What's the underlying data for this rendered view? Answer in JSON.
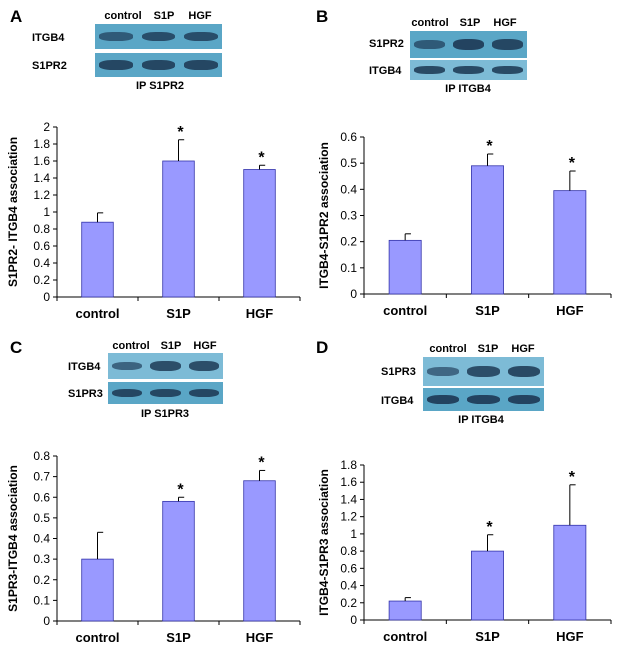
{
  "colors": {
    "bar": "#9999ff",
    "bar_stroke": "#3333aa",
    "blot": "#5aa6c6",
    "band": "#1e3b57"
  },
  "panels": [
    {
      "letter": "A",
      "lanes": [
        "control",
        "S1P",
        "HGF"
      ],
      "blots": [
        "ITGB4",
        "S1PR2"
      ],
      "ip": "IP S1PR2",
      "band_intensity": [
        [
          0.6,
          0.8,
          0.8
        ],
        [
          0.9,
          0.9,
          0.9
        ]
      ]
    },
    {
      "letter": "B",
      "lanes": [
        "control",
        "S1P",
        "HGF"
      ],
      "blots": [
        "S1PR2",
        "ITGB4"
      ],
      "ip": "IP ITGB4",
      "band_intensity": [
        [
          0.6,
          0.95,
          0.9
        ],
        [
          0.9,
          0.9,
          0.9
        ]
      ]
    },
    {
      "letter": "C",
      "lanes": [
        "control",
        "S1P",
        "HGF"
      ],
      "blots": [
        "ITGB4",
        "S1PR3"
      ],
      "ip": "IP S1PR3",
      "band_intensity": [
        [
          0.55,
          0.85,
          0.85
        ],
        [
          0.9,
          0.9,
          0.9
        ]
      ]
    },
    {
      "letter": "D",
      "lanes": [
        "control",
        "S1P",
        "HGF"
      ],
      "blots": [
        "S1PR3",
        "ITGB4"
      ],
      "ip": "IP ITGB4",
      "band_intensity": [
        [
          0.5,
          0.85,
          0.9
        ],
        [
          0.95,
          0.95,
          0.95
        ]
      ]
    }
  ],
  "chart_data": [
    {
      "type": "bar",
      "panel": "A",
      "categories": [
        "control",
        "S1P",
        "HGF"
      ],
      "values": [
        0.88,
        1.6,
        1.5
      ],
      "errors": [
        0.11,
        0.25,
        0.05
      ],
      "significance": [
        "",
        "*",
        "*"
      ],
      "ylabel": "S1PR2- ITGB4 association",
      "ylim": [
        0,
        2
      ],
      "yticks": [
        0,
        0.2,
        0.4,
        0.6,
        0.8,
        1,
        1.2,
        1.4,
        1.6,
        1.8,
        2
      ],
      "ytick_labels": [
        "0",
        "0.2",
        "0.4",
        "0.6",
        "0.8",
        "1",
        "1.2",
        "1.4",
        "1.6",
        "1.8",
        "2"
      ]
    },
    {
      "type": "bar",
      "panel": "B",
      "categories": [
        "control",
        "S1P",
        "HGF"
      ],
      "values": [
        0.205,
        0.49,
        0.395
      ],
      "errors": [
        0.025,
        0.045,
        0.075
      ],
      "significance": [
        "",
        "*",
        "*"
      ],
      "ylabel": "ITGB4-S1PR2 association",
      "ylim": [
        0,
        0.6
      ],
      "yticks": [
        0,
        0.1,
        0.2,
        0.3,
        0.4,
        0.5,
        0.6
      ],
      "ytick_labels": [
        "0",
        "0.1",
        "0.2",
        "0.3",
        "0.4",
        "0.5",
        "0.6"
      ]
    },
    {
      "type": "bar",
      "panel": "C",
      "categories": [
        "control",
        "S1P",
        "HGF"
      ],
      "values": [
        0.3,
        0.58,
        0.68
      ],
      "errors": [
        0.13,
        0.02,
        0.05
      ],
      "significance": [
        "",
        "*",
        "*"
      ],
      "ylabel": "S1PR3-ITGB4 association",
      "ylim": [
        0,
        0.8
      ],
      "yticks": [
        0,
        0.1,
        0.2,
        0.3,
        0.4,
        0.5,
        0.6,
        0.7,
        0.8
      ],
      "ytick_labels": [
        "0",
        "0.1",
        "0.2",
        "0.3",
        "0.4",
        "0.5",
        "0.6",
        "0.7",
        "0.8"
      ]
    },
    {
      "type": "bar",
      "panel": "D",
      "categories": [
        "control",
        "S1P",
        "HGF"
      ],
      "values": [
        0.22,
        0.8,
        1.1
      ],
      "errors": [
        0.04,
        0.19,
        0.47
      ],
      "significance": [
        "",
        "*",
        "*"
      ],
      "ylabel": "ITGB4-S1PR3 association",
      "ylim": [
        0,
        1.8
      ],
      "yticks": [
        0,
        0.2,
        0.4,
        0.6,
        0.8,
        1,
        1.2,
        1.4,
        1.6,
        1.8
      ],
      "ytick_labels": [
        "0",
        "0.2",
        "0.4",
        "0.6",
        "0.8",
        "1",
        "1.2",
        "1.4",
        "1.6",
        "1.8"
      ]
    }
  ]
}
